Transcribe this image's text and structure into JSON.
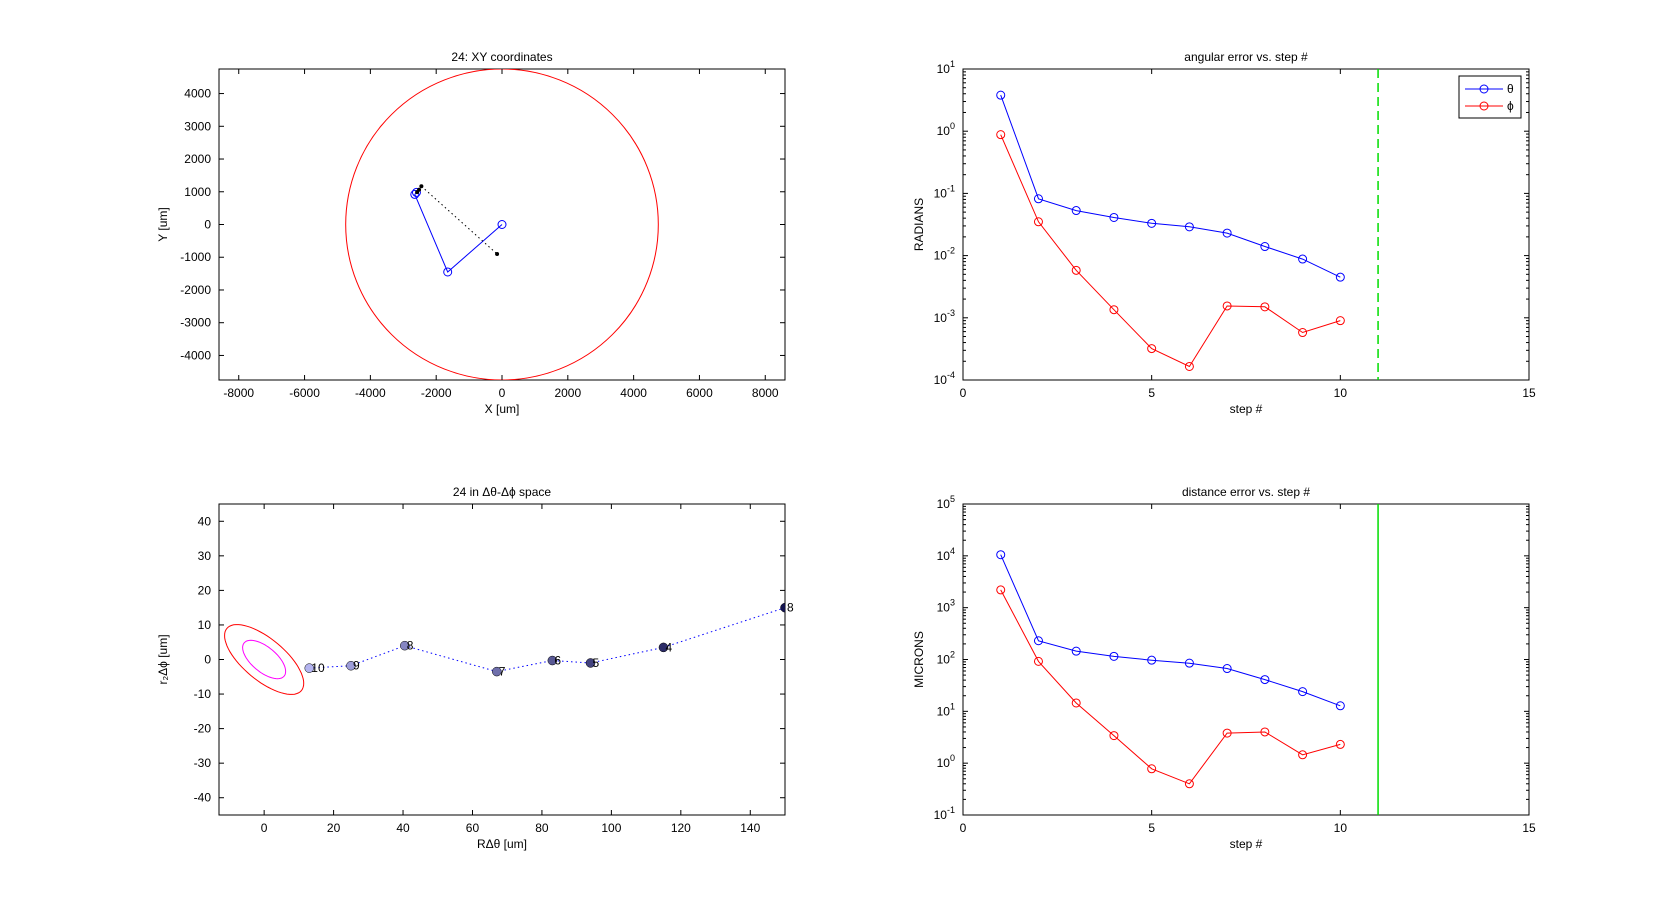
{
  "chart_data": [
    {
      "id": "xy",
      "type": "line",
      "title": "24: XY coordinates",
      "xlabel": "X [um]",
      "ylabel": "Y [um]",
      "xlim": [
        -8600,
        8600
      ],
      "ylim": [
        -4750,
        4750
      ],
      "xticks": [
        -8000,
        -6000,
        -4000,
        -2000,
        0,
        2000,
        4000,
        6000,
        8000
      ],
      "yticks": [
        -4000,
        -3000,
        -2000,
        -1000,
        0,
        1000,
        2000,
        3000,
        4000
      ],
      "grid": false,
      "circle": {
        "center": [
          0,
          0
        ],
        "radius": 4750,
        "color": "#ff0000"
      },
      "series": [
        {
          "color": "#0000ff",
          "style": "solid",
          "marker": "circle",
          "x": [
            0,
            -1650,
            -2650,
            -2600
          ],
          "y": [
            0,
            -1450,
            920,
            980
          ]
        },
        {
          "color": "#000000",
          "style": "dotted",
          "marker": "dot",
          "x": [
            -2450,
            -150
          ],
          "y": [
            1170,
            -900
          ]
        }
      ]
    },
    {
      "id": "angular",
      "type": "line",
      "title": "angular error vs. step #",
      "xlabel": "step #",
      "ylabel": "RADIANS",
      "xlim": [
        0,
        15
      ],
      "xticks": [
        0,
        5,
        10,
        15
      ],
      "ylog": true,
      "ylim_exp": [
        -4,
        1
      ],
      "grid": false,
      "legend": "top-right",
      "vline": {
        "x": 11,
        "color": "#00dd00",
        "style": "dashed"
      },
      "series": [
        {
          "name": "θ",
          "color": "#0000ff",
          "x": [
            1,
            2,
            3,
            4,
            5,
            6,
            7,
            8,
            9,
            10
          ],
          "y": [
            3.8,
            0.082,
            0.053,
            0.041,
            0.033,
            0.029,
            0.023,
            0.014,
            0.0088,
            0.0045
          ]
        },
        {
          "name": "ϕ",
          "color": "#ff0000",
          "x": [
            1,
            2,
            3,
            4,
            5,
            6,
            7,
            8,
            9,
            10
          ],
          "y": [
            0.88,
            0.035,
            0.0058,
            0.00135,
            0.00032,
            0.000165,
            0.00155,
            0.0015,
            0.00058,
            0.0009
          ]
        }
      ]
    },
    {
      "id": "dspace",
      "type": "scatter",
      "title": "24 in Δθ-Δϕ space",
      "xlabel": "RΔθ [um]",
      "ylabel": "r₂Δϕ [um]",
      "xlim": [
        -13,
        150
      ],
      "ylim": [
        -45,
        45
      ],
      "xticks": [
        0,
        20,
        40,
        60,
        80,
        100,
        120,
        140
      ],
      "yticks": [
        -40,
        -30,
        -20,
        -10,
        0,
        10,
        20,
        30,
        40
      ],
      "grid": false,
      "ellipses": [
        {
          "center": [
            0,
            0
          ],
          "rx": 14,
          "ry": 6,
          "angle_deg": -40,
          "color": "#ff0000"
        },
        {
          "center": [
            0,
            0
          ],
          "rx": 7.5,
          "ry": 3.6,
          "angle_deg": -40,
          "color": "#ff00ff"
        }
      ],
      "points": [
        {
          "x": 150,
          "y": 15,
          "label": "8"
        },
        {
          "x": 115,
          "y": 3.5,
          "label": "4"
        },
        {
          "x": 94,
          "y": -1,
          "label": "5"
        },
        {
          "x": 83,
          "y": -0.3,
          "label": "6"
        },
        {
          "x": 67,
          "y": -3.5,
          "label": "7"
        },
        {
          "x": 40.5,
          "y": 4,
          "label": "8"
        },
        {
          "x": 25,
          "y": -1.8,
          "label": "9"
        },
        {
          "x": 13,
          "y": -2.5,
          "label": "10"
        }
      ]
    },
    {
      "id": "distance",
      "type": "line",
      "title": "distance error vs. step #",
      "xlabel": "step #",
      "ylabel": "MICRONS",
      "xlim": [
        0,
        15
      ],
      "xticks": [
        0,
        5,
        10,
        15
      ],
      "ylog": true,
      "ylim_exp": [
        -1,
        5
      ],
      "grid": false,
      "vline": {
        "x": 11,
        "color": "#00dd00",
        "style": "solid"
      },
      "series": [
        {
          "color": "#0000ff",
          "x": [
            1,
            2,
            3,
            4,
            5,
            6,
            7,
            8,
            9,
            10
          ],
          "y": [
            10500,
            230,
            145,
            115,
            97,
            85,
            67,
            41,
            24,
            12.8
          ]
        },
        {
          "color": "#ff0000",
          "x": [
            1,
            2,
            3,
            4,
            5,
            6,
            7,
            8,
            9,
            10
          ],
          "y": [
            2200,
            92,
            14.5,
            3.4,
            0.78,
            0.4,
            3.8,
            4.0,
            1.45,
            2.3
          ]
        }
      ]
    }
  ]
}
